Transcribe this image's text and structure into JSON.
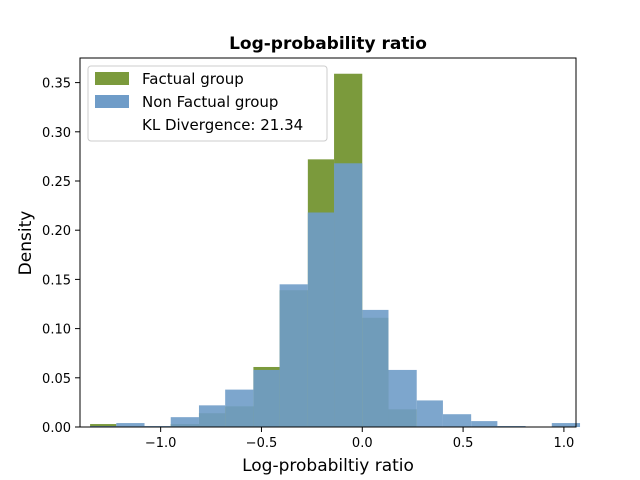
{
  "chart_data": {
    "type": "bar",
    "title": "Log-probability ratio",
    "xlabel": "Log-probabiltiy ratio",
    "ylabel": "Density",
    "xlim": [
      -1.4,
      1.06
    ],
    "ylim": [
      0,
      0.375
    ],
    "xticks": [
      -1.0,
      -0.5,
      0.0,
      0.5,
      1.0
    ],
    "xtick_labels": [
      "−1.0",
      "−0.5",
      "0.0",
      "0.5",
      "1.0"
    ],
    "yticks": [
      0.0,
      0.05,
      0.1,
      0.15,
      0.2,
      0.25,
      0.3,
      0.35
    ],
    "ytick_labels": [
      "0.00",
      "0.05",
      "0.10",
      "0.15",
      "0.20",
      "0.25",
      "0.30",
      "0.35"
    ],
    "grid": false,
    "legend_position": "top-left",
    "series": [
      {
        "name": "Factual group",
        "color": "#7b9a3c",
        "bins": [
          {
            "x0": -1.35,
            "x1": -1.22,
            "y": 0.003
          },
          {
            "x0": -1.22,
            "x1": -1.08,
            "y": 0.0
          },
          {
            "x0": -1.08,
            "x1": -0.95,
            "y": 0.0
          },
          {
            "x0": -0.95,
            "x1": -0.81,
            "y": 0.003
          },
          {
            "x0": -0.81,
            "x1": -0.68,
            "y": 0.014
          },
          {
            "x0": -0.68,
            "x1": -0.54,
            "y": 0.021
          },
          {
            "x0": -0.54,
            "x1": -0.41,
            "y": 0.061
          },
          {
            "x0": -0.41,
            "x1": -0.27,
            "y": 0.139
          },
          {
            "x0": -0.27,
            "x1": -0.14,
            "y": 0.272
          },
          {
            "x0": -0.14,
            "x1": 0.0,
            "y": 0.359
          },
          {
            "x0": 0.0,
            "x1": 0.13,
            "y": 0.111
          },
          {
            "x0": 0.13,
            "x1": 0.27,
            "y": 0.018
          },
          {
            "x0": 0.27,
            "x1": 0.4,
            "y": 0.0
          }
        ]
      },
      {
        "name": "Non Factual group",
        "color": "#6f9cc8",
        "bins": [
          {
            "x0": -1.35,
            "x1": -1.22,
            "y": 0.001
          },
          {
            "x0": -1.22,
            "x1": -1.08,
            "y": 0.004
          },
          {
            "x0": -1.08,
            "x1": -0.95,
            "y": 0.001
          },
          {
            "x0": -0.95,
            "x1": -0.81,
            "y": 0.01
          },
          {
            "x0": -0.81,
            "x1": -0.68,
            "y": 0.022
          },
          {
            "x0": -0.68,
            "x1": -0.54,
            "y": 0.038
          },
          {
            "x0": -0.54,
            "x1": -0.41,
            "y": 0.058
          },
          {
            "x0": -0.41,
            "x1": -0.27,
            "y": 0.145
          },
          {
            "x0": -0.27,
            "x1": -0.14,
            "y": 0.218
          },
          {
            "x0": -0.14,
            "x1": 0.0,
            "y": 0.268
          },
          {
            "x0": 0.0,
            "x1": 0.13,
            "y": 0.119
          },
          {
            "x0": 0.13,
            "x1": 0.27,
            "y": 0.058
          },
          {
            "x0": 0.27,
            "x1": 0.4,
            "y": 0.027
          },
          {
            "x0": 0.4,
            "x1": 0.54,
            "y": 0.013
          },
          {
            "x0": 0.54,
            "x1": 0.67,
            "y": 0.006
          },
          {
            "x0": 0.67,
            "x1": 0.81,
            "y": 0.001
          },
          {
            "x0": 0.81,
            "x1": 0.94,
            "y": 0.0
          },
          {
            "x0": 0.94,
            "x1": 1.08,
            "y": 0.004
          }
        ]
      }
    ],
    "annotation": "KL Divergence: 21.34"
  }
}
